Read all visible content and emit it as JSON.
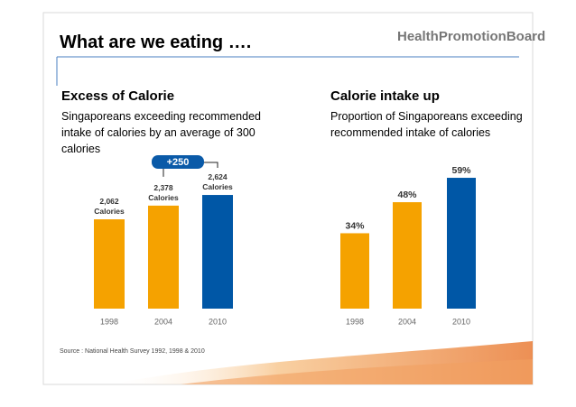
{
  "header": {
    "title": "What are we eating ….",
    "logo": "HealthPromotionBoard"
  },
  "source": "Source : National Health Survey 1992, 1998 & 2010",
  "chart_data": [
    {
      "type": "bar",
      "title": "Excess of  Calorie",
      "subtitle": "Singaporeans exceeding recommended intake of calories by an average of 300 calories",
      "categories": [
        "1998",
        "2004",
        "2010"
      ],
      "values": [
        2062,
        2378,
        2624
      ],
      "value_labels": [
        "2,062 Calories",
        "2,378 Calories",
        "2,624 Calories"
      ],
      "colors": [
        "#f5a200",
        "#f5a200",
        "#0057a6"
      ],
      "ylim": [
        0,
        3000
      ],
      "annotation": "+250"
    },
    {
      "type": "bar",
      "title": "Calorie intake up",
      "subtitle": "Proportion of Singaporeans exceeding recommended intake of calories",
      "categories": [
        "1998",
        "2004",
        "2010"
      ],
      "values": [
        34,
        48,
        59
      ],
      "value_labels": [
        "34%",
        "48%",
        "59%"
      ],
      "colors": [
        "#f5a200",
        "#f5a200",
        "#0057a6"
      ],
      "ylim": [
        0,
        70
      ]
    }
  ]
}
